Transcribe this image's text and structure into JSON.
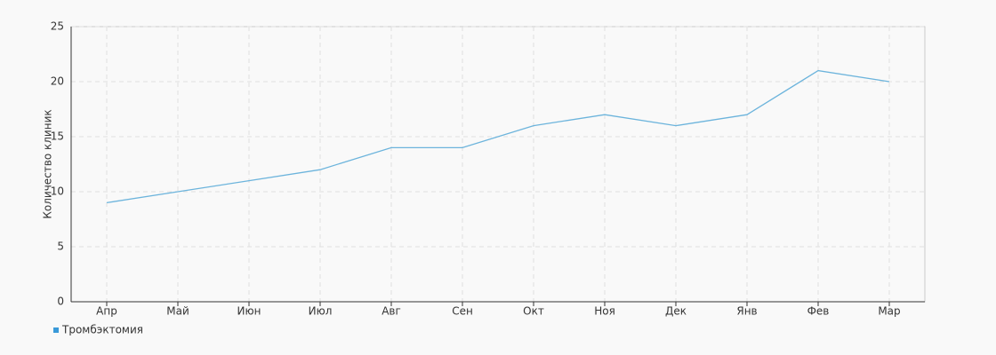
{
  "chart_data": {
    "type": "line",
    "y_label": "Количество клиник",
    "categories": [
      "Апр",
      "Май",
      "Июн",
      "Июл",
      "Авг",
      "Сен",
      "Окт",
      "Ноя",
      "Дек",
      "Янв",
      "Фев",
      "Мар"
    ],
    "series": [
      {
        "name": "Тромбэктомия",
        "color": "#6cb4dc",
        "values": [
          9,
          10,
          11,
          12,
          14,
          14,
          16,
          17,
          16,
          17,
          21,
          20
        ]
      }
    ],
    "ylim": [
      0,
      25
    ],
    "yticks": [
      0,
      5,
      10,
      15,
      20,
      25
    ],
    "grid": true,
    "legend": "bottom-left"
  }
}
